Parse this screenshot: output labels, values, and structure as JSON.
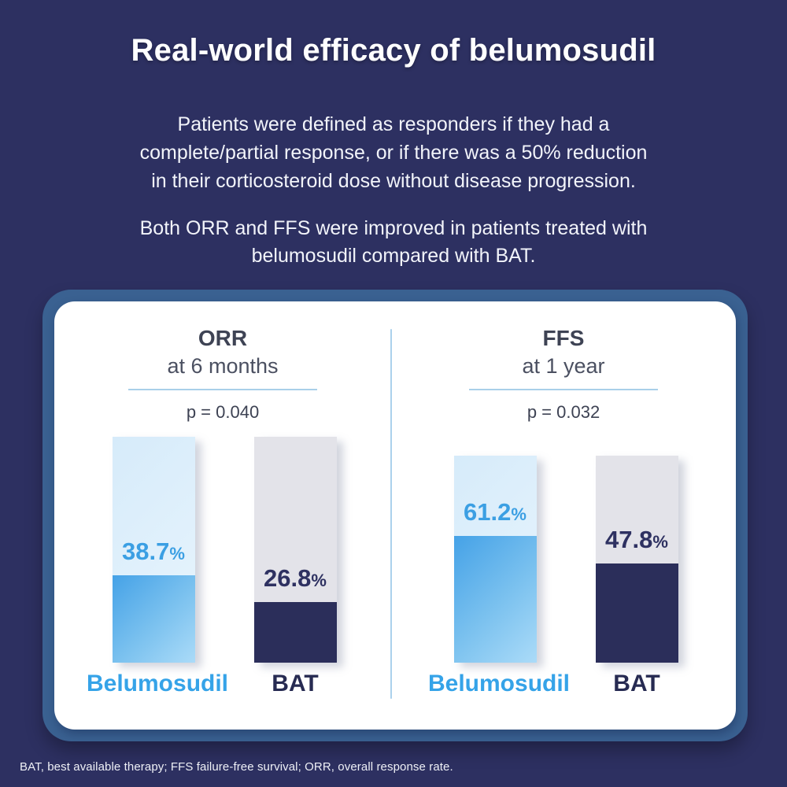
{
  "header": {
    "title": "Real-world efficacy of belumosudil",
    "paragraph1_lines": [
      "Patients were defined as responders if they had a",
      "complete/partial response, or if there was a 50% reduction",
      "in their corticosteroid dose without disease progression."
    ],
    "paragraph2_lines": [
      "Both ORR and FFS were improved in patients treated with",
      "belumosudil compared with BAT."
    ]
  },
  "chart_data": {
    "type": "bar",
    "ylim": [
      0,
      100
    ],
    "grid": false,
    "legend": "none",
    "panels": [
      {
        "title": "ORR",
        "subtitle": "at 6 months",
        "p_value": "p = 0.040",
        "categories": [
          "Belumosudil",
          "BAT"
        ],
        "values": [
          38.7,
          26.8
        ],
        "bars": [
          {
            "label": "Belumosudil",
            "value": 38.7,
            "value_display": "38.7",
            "unit": "%",
            "theme": "blue"
          },
          {
            "label": "BAT",
            "value": 26.8,
            "value_display": "26.8",
            "unit": "%",
            "theme": "navy"
          }
        ]
      },
      {
        "title": "FFS",
        "subtitle": "at 1 year",
        "p_value": "p = 0.032",
        "categories": [
          "Belumosudil",
          "BAT"
        ],
        "values": [
          61.2,
          47.8
        ],
        "bars": [
          {
            "label": "Belumosudil",
            "value": 61.2,
            "value_display": "61.2",
            "unit": "%",
            "theme": "blue"
          },
          {
            "label": "BAT",
            "value": 47.8,
            "value_display": "47.8",
            "unit": "%",
            "theme": "navy"
          }
        ]
      }
    ]
  },
  "footer": {
    "text": "BAT, best available therapy; FFS failure-free survival; ORR, overall response rate."
  },
  "colors": {
    "background": "#2d3061",
    "card_border": "#3a6191",
    "card_background": "#ffffff",
    "heading_text": "#3e4354",
    "p_value_text": "#3d4253",
    "divider": "#abd1ec",
    "belumosudil_accent": "#35a3e8",
    "belumosudil_fill_start": "#45a2e7",
    "belumosudil_fill_end": "#abdbf8",
    "belumosudil_track": "#ddeefb",
    "bat_navy": "#2b2e5a",
    "bat_track": "#e3e3e9",
    "title_text": "#ffffff"
  }
}
